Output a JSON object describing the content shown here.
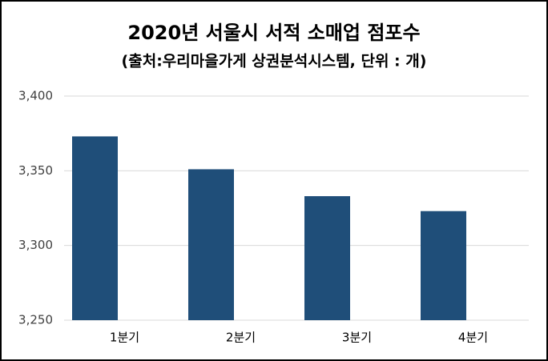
{
  "chart_data": {
    "type": "bar",
    "title": "2020년 서울시 서적 소매업 점포수",
    "subtitle": "(출처:우리마을가게 상권분석시스템, 단위 : 개)",
    "categories": [
      "1분기",
      "2분기",
      "3분기",
      "4분기"
    ],
    "values": [
      3373,
      3351,
      3333,
      3323
    ],
    "color": "#1f4e79",
    "ylim": [
      3250,
      3400
    ],
    "yticks": [
      {
        "value": 3250,
        "label": "3,250"
      },
      {
        "value": 3300,
        "label": "3,300"
      },
      {
        "value": 3350,
        "label": "3,350"
      },
      {
        "value": 3400,
        "label": "3,400"
      }
    ],
    "grid": true
  }
}
